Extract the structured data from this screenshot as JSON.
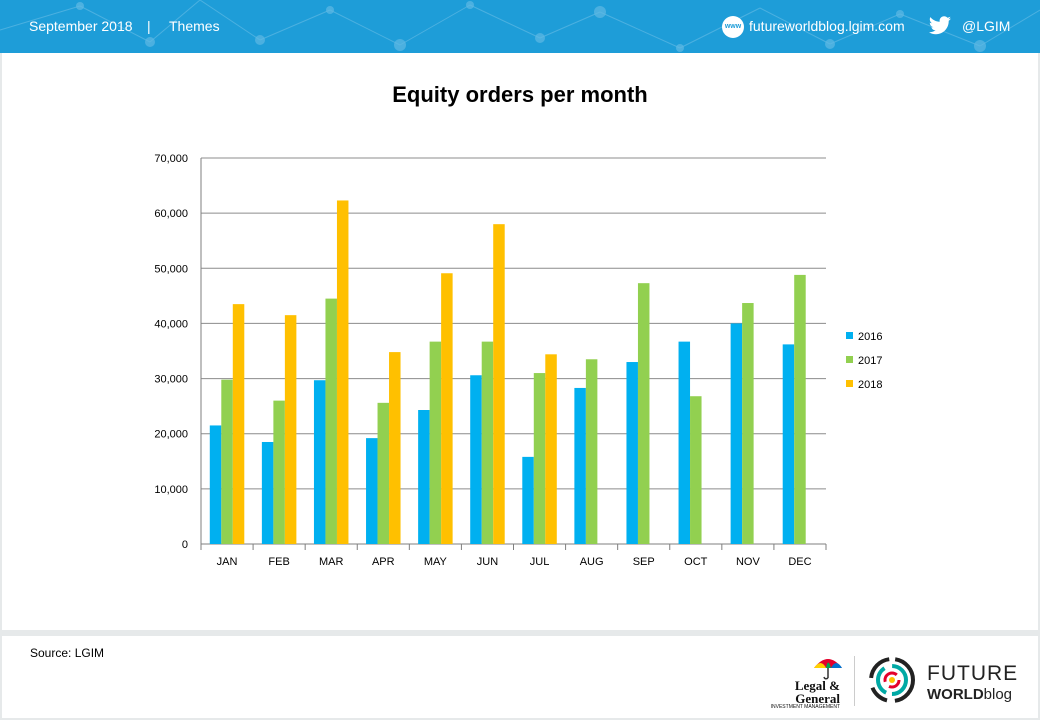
{
  "header": {
    "date": "September 2018",
    "separator": "|",
    "section": "Themes",
    "www_badge": "www",
    "website": "futureworldblog.lgim.com",
    "twitter": "@LGIM"
  },
  "source": "Source: LGIM",
  "logos": {
    "lg_line1": "Legal &",
    "lg_line2": "General",
    "lg_sub": "INVESTMENT MANAGEMENT",
    "fw_line1": "FUTURE",
    "fw_line2a": "WORLD",
    "fw_line2b": "blog"
  },
  "colors": {
    "header_bg": "#1e9dd8",
    "series_2016": "#00b0f0",
    "series_2017": "#92d050",
    "series_2018": "#ffc000"
  },
  "chart_data": {
    "type": "bar",
    "title": "Equity orders per month",
    "xlabel": "",
    "ylabel": "",
    "ylim": [
      0,
      70000
    ],
    "yticks": [
      0,
      10000,
      20000,
      30000,
      40000,
      50000,
      60000,
      70000
    ],
    "ytick_labels": [
      "0",
      "10,000",
      "20,000",
      "30,000",
      "40,000",
      "50,000",
      "60,000",
      "70,000"
    ],
    "grid": true,
    "legend": "right",
    "categories": [
      "JAN",
      "FEB",
      "MAR",
      "APR",
      "MAY",
      "JUN",
      "JUL",
      "AUG",
      "SEP",
      "OCT",
      "NOV",
      "DEC"
    ],
    "series": [
      {
        "name": "2016",
        "color": "#00b0f0",
        "values": [
          21500,
          18500,
          29700,
          19200,
          24300,
          30600,
          15800,
          28300,
          33000,
          36700,
          40000,
          36200
        ]
      },
      {
        "name": "2017",
        "color": "#92d050",
        "values": [
          29800,
          26000,
          44500,
          25600,
          36700,
          36700,
          31000,
          33500,
          47300,
          26800,
          43700,
          48800
        ]
      },
      {
        "name": "2018",
        "color": "#ffc000",
        "values": [
          43500,
          41500,
          62300,
          34800,
          49100,
          58000,
          34400,
          null,
          null,
          null,
          null,
          null
        ]
      }
    ]
  }
}
